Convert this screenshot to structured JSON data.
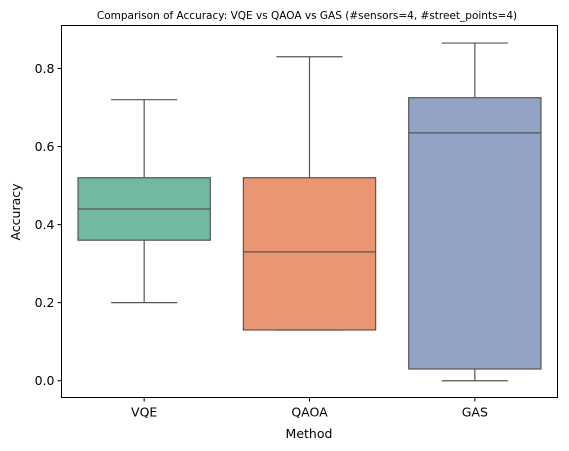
{
  "chart_data": {
    "type": "box",
    "title": "Comparison of Accuracy: VQE vs QAOA vs GAS (#sensors=4, #street_points=4)",
    "xlabel": "Method",
    "ylabel": "Accuracy",
    "categories": [
      "VQE",
      "QAOA",
      "GAS"
    ],
    "ylim": [
      -0.043,
      0.91
    ],
    "yticks": [
      0.0,
      0.2,
      0.4,
      0.6,
      0.8
    ],
    "ytick_labels": [
      "0.0",
      "0.2",
      "0.4",
      "0.6",
      "0.8"
    ],
    "grid": false,
    "boxes": [
      {
        "name": "VQE",
        "whisker_low": 0.2,
        "q1": 0.36,
        "median": 0.44,
        "q3": 0.52,
        "whisker_high": 0.72,
        "color": "#72b8a3"
      },
      {
        "name": "QAOA",
        "whisker_low": 0.13,
        "q1": 0.13,
        "median": 0.33,
        "q3": 0.52,
        "whisker_high": 0.83,
        "color": "#eb9673"
      },
      {
        "name": "GAS",
        "whisker_low": 0.0,
        "q1": 0.03,
        "median": 0.635,
        "q3": 0.725,
        "whisker_high": 0.865,
        "color": "#93a3c5"
      }
    ],
    "line_color": "#555555"
  }
}
